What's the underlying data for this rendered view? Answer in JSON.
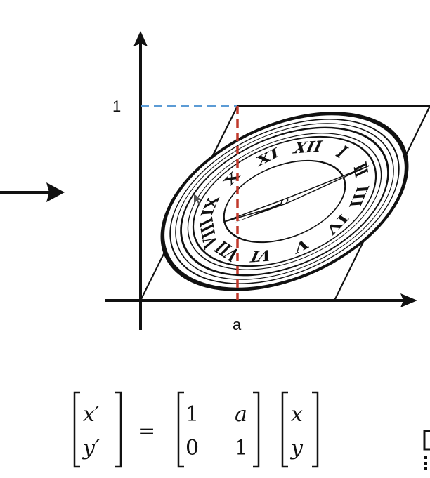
{
  "diagram": {
    "y_tick_label": "1",
    "x_tick_label": "a",
    "roman_numerals": [
      "XII",
      "I",
      "II",
      "III",
      "IV",
      "V",
      "VI",
      "VII",
      "VIII",
      "IX",
      "X",
      "XI"
    ]
  },
  "equation": {
    "lhs": [
      "x′",
      "y′"
    ],
    "equals": "=",
    "matrix": [
      [
        "1",
        "a"
      ],
      [
        "0",
        "1"
      ]
    ],
    "vector": [
      "x",
      "y"
    ]
  },
  "colors": {
    "ink": "#111111",
    "dashed_horizontal": "#5b9bd5",
    "dashed_vertical": "#c0392b"
  }
}
